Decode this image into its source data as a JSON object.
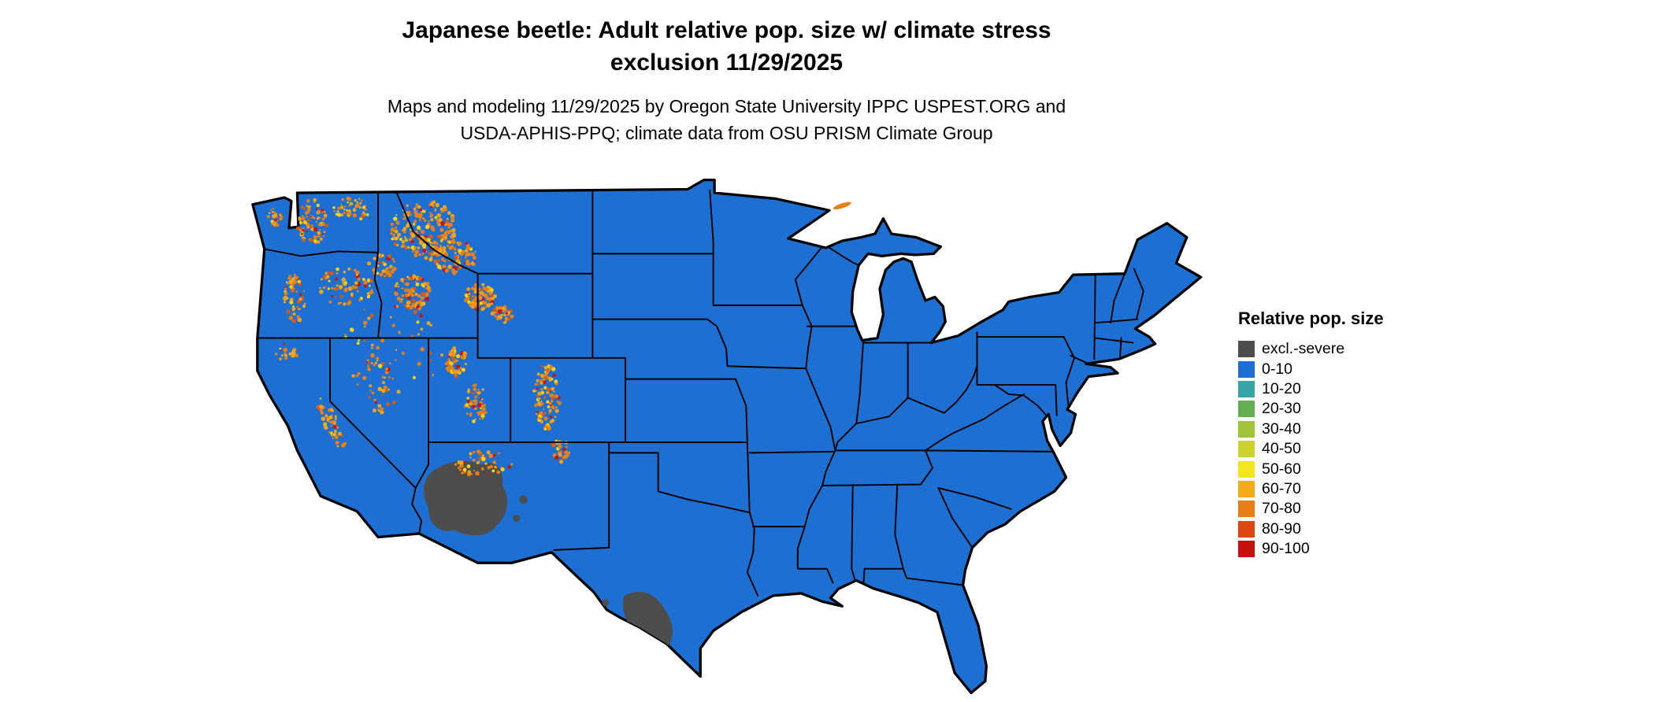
{
  "title": {
    "line1": "Japanese beetle: Adult relative pop. size w/ climate stress",
    "line2": "exclusion 11/29/2025"
  },
  "subtitle": {
    "line1": "Maps and modeling 11/29/2025 by Oregon State University IPPC USPEST.ORG and",
    "line2": "USDA-APHIS-PPQ; climate data from OSU PRISM Climate Group"
  },
  "legend": {
    "title": "Relative pop. size",
    "entries": [
      {
        "label": "excl.-severe",
        "color": "#4d4d4d"
      },
      {
        "label": "0-10",
        "color": "#1e6fd2"
      },
      {
        "label": "10-20",
        "color": "#36a3a4"
      },
      {
        "label": "20-30",
        "color": "#63ae53"
      },
      {
        "label": "30-40",
        "color": "#9fc43c"
      },
      {
        "label": "40-50",
        "color": "#ccd32a"
      },
      {
        "label": "50-60",
        "color": "#f4e61c"
      },
      {
        "label": "60-70",
        "color": "#f2aa1a"
      },
      {
        "label": "70-80",
        "color": "#e87e16"
      },
      {
        "label": "80-90",
        "color": "#dc4812"
      },
      {
        "label": "90-100",
        "color": "#c81010"
      }
    ]
  },
  "map": {
    "region": "Contiguous United States",
    "base_color": "#1e6fd2",
    "severe_color": "#4d4d4d",
    "border_color": "#000000",
    "background": "#ffffff",
    "dominant_class": "0-10",
    "severe_areas": "southern Arizona, southwestern New Mexico, Rio Grande area of southwest Texas",
    "speckled_areas": "mountain West (Cascades, Idaho, western Montana, Yellowstone, Utah, Colorado Rockies, Sierra Nevada)",
    "speckle_palette": [
      "#e88018",
      "#f2a518",
      "#f4d414",
      "#d65a10",
      "#c81010"
    ],
    "speckle_clusters": [
      [
        110,
        82,
        13,
        20,
        85,
        0
      ],
      [
        143,
        72,
        16,
        10,
        45,
        0
      ],
      [
        78,
        80,
        6,
        9,
        22,
        0
      ],
      [
        95,
        148,
        9,
        22,
        60,
        0
      ],
      [
        138,
        138,
        24,
        16,
        80,
        0
      ],
      [
        170,
        120,
        12,
        10,
        35,
        0
      ],
      [
        205,
        90,
        28,
        26,
        210,
        0
      ],
      [
        232,
        113,
        18,
        14,
        85,
        0
      ],
      [
        195,
        143,
        16,
        14,
        85,
        0
      ],
      [
        253,
        147,
        13,
        11,
        95,
        0
      ],
      [
        272,
        162,
        9,
        7,
        38,
        0
      ],
      [
        233,
        203,
        9,
        13,
        60,
        0
      ],
      [
        250,
        238,
        10,
        16,
        55,
        0
      ],
      [
        310,
        232,
        11,
        28,
        115,
        0
      ],
      [
        322,
        278,
        8,
        10,
        30,
        0
      ],
      [
        126,
        255,
        7,
        22,
        50,
        0.45
      ],
      [
        165,
        222,
        20,
        24,
        40,
        0
      ],
      [
        88,
        195,
        10,
        8,
        20,
        0
      ],
      [
        255,
        289,
        26,
        11,
        55,
        -0.2
      ],
      [
        180,
        190,
        45,
        40,
        55,
        0
      ]
    ]
  }
}
